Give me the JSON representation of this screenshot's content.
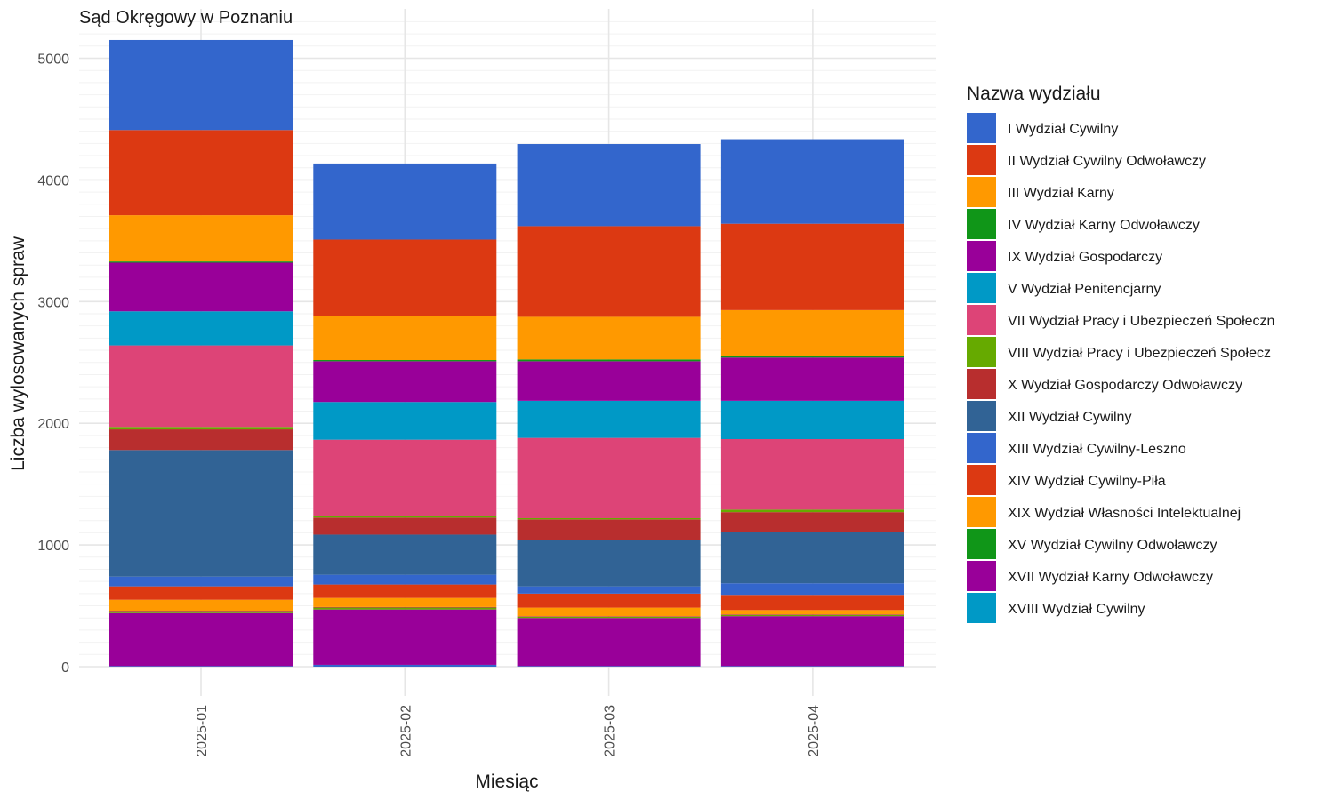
{
  "chart_data": {
    "type": "bar",
    "stacked": true,
    "title": "Sąd Okręgowy w Poznaniu",
    "xlabel": "Miesiąc",
    "ylabel": "Liczba wylosowanych spraw",
    "categories": [
      "2025-01",
      "2025-02",
      "2025-03",
      "2025-04"
    ],
    "ylim": [
      0,
      5300
    ],
    "yticks": [
      0,
      1000,
      2000,
      3000,
      4000,
      5000
    ],
    "grid": true,
    "legend": {
      "title": "Nazwa wydziału",
      "position": "right"
    },
    "series": [
      {
        "name": "I Wydział Cywilny",
        "color": "#3366CC",
        "values": [
          5,
          15,
          5,
          5
        ]
      },
      {
        "name": "II Wydział Cywilny Odwoławczy",
        "color": "#DC3912",
        "values": [
          0,
          0,
          0,
          0
        ]
      },
      {
        "name": "III Wydział Karny",
        "color": "#FF9900",
        "values": [
          0,
          0,
          0,
          0
        ]
      },
      {
        "name": "IV Wydział Karny Odwoławczy",
        "color": "#109618",
        "values": [
          0,
          0,
          0,
          0
        ]
      },
      {
        "name": "IX Wydział Gospodarczy",
        "color": "#990099",
        "values": [
          435,
          455,
          395,
          410
        ]
      },
      {
        "name": "V Wydział Penitencjarny",
        "color": "#0099C6",
        "values": [
          0,
          0,
          0,
          0
        ]
      },
      {
        "name": "VII Wydział Pracy i Ubezpieczeń Społeczn",
        "color": "#DD4477",
        "values": [
          0,
          0,
          0,
          0
        ]
      },
      {
        "name": "VIII Wydział Pracy i Ubezpieczeń Społecz",
        "color": "#66AA00",
        "values": [
          15,
          15,
          10,
          10
        ]
      },
      {
        "name": "X Wydział Gospodarczy Odwoławczy",
        "color": "#B82E2E",
        "values": [
          5,
          5,
          5,
          5
        ]
      },
      {
        "name": "XII Wydział Cywilny",
        "color": "#316395",
        "values": [
          0,
          0,
          0,
          0
        ]
      },
      {
        "name": "XIII Wydział Cywilny-Leszno",
        "color": "#3366CC",
        "values": [
          0,
          0,
          0,
          0
        ]
      },
      {
        "name": "XIV Wydział Cywilny-Piła",
        "color": "#DC3912",
        "values": [
          0,
          0,
          0,
          0
        ]
      },
      {
        "name": "XIX Wydział Własności Intelektualnej",
        "color": "#FF9900",
        "values": [
          90,
          75,
          70,
          35
        ]
      },
      {
        "name": "XV Wydział Cywilny Odwoławczy",
        "color": "#109618",
        "values": [
          0,
          0,
          0,
          0
        ]
      },
      {
        "name": "XVII Wydział Karny Odwoławczy",
        "color": "#990099",
        "values": [
          0,
          0,
          0,
          0
        ]
      },
      {
        "name": "XVIII Wydział Cywilny",
        "color": "#0099C6",
        "values": [
          0,
          0,
          0,
          0
        ]
      },
      {
        "name": "XIV Wydział Cywilny-Piła (upper)",
        "color": "#DC3912",
        "values": [
          110,
          110,
          115,
          125
        ]
      },
      {
        "name": "XIII Wydział Cywilny-Leszno (upper)",
        "color": "#3366CC",
        "values": [
          80,
          80,
          60,
          95
        ]
      },
      {
        "name": "XII Wydział Cywilny (upper)",
        "color": "#316395",
        "values": [
          1040,
          330,
          380,
          420
        ]
      },
      {
        "name": "X Wydział Gospodarczy Odwoławczy (upper)",
        "color": "#B82E2E",
        "values": [
          170,
          140,
          170,
          165
        ]
      },
      {
        "name": "VIII Wydział Pracy i Ubezpieczeń Społecz (upper)",
        "color": "#66AA00",
        "values": [
          20,
          10,
          10,
          20
        ]
      },
      {
        "name": "VII Wydział Pracy i Ubezpieczeń Społeczn (upper)",
        "color": "#DD4477",
        "values": [
          670,
          630,
          660,
          580
        ]
      },
      {
        "name": "V Wydział Penitencjarny (upper)",
        "color": "#0099C6",
        "values": [
          280,
          310,
          305,
          315
        ]
      },
      {
        "name": "IX Wydział Gospodarczy (upper)",
        "color": "#990099",
        "values": [
          400,
          335,
          325,
          355
        ]
      },
      {
        "name": "IV Wydział Karny Odwoławczy (upper)",
        "color": "#109618",
        "values": [
          10,
          10,
          15,
          10
        ]
      },
      {
        "name": "III Wydział Karny (upper)",
        "color": "#FF9900",
        "values": [
          380,
          360,
          350,
          380
        ]
      },
      {
        "name": "II Wydział Cywilny Odwoławczy (upper)",
        "color": "#DC3912",
        "values": [
          700,
          630,
          745,
          710
        ]
      },
      {
        "name": "I Wydział Cywilny (upper)",
        "color": "#3366CC",
        "values": [
          740,
          625,
          675,
          695
        ]
      }
    ],
    "legend_entries": [
      {
        "label": "I Wydział Cywilny",
        "color": "#3366CC"
      },
      {
        "label": "II Wydział Cywilny Odwoławczy",
        "color": "#DC3912"
      },
      {
        "label": "III Wydział Karny",
        "color": "#FF9900"
      },
      {
        "label": "IV Wydział Karny Odwoławczy",
        "color": "#109618"
      },
      {
        "label": "IX Wydział Gospodarczy",
        "color": "#990099"
      },
      {
        "label": "V Wydział Penitencjarny",
        "color": "#0099C6"
      },
      {
        "label": "VII Wydział Pracy i Ubezpieczeń Społeczn",
        "color": "#DD4477"
      },
      {
        "label": "VIII Wydział Pracy i Ubezpieczeń Społecz",
        "color": "#66AA00"
      },
      {
        "label": "X Wydział Gospodarczy Odwoławczy",
        "color": "#B82E2E"
      },
      {
        "label": "XII Wydział Cywilny",
        "color": "#316395"
      },
      {
        "label": "XIII Wydział Cywilny-Leszno",
        "color": "#3366CC"
      },
      {
        "label": "XIV Wydział Cywilny-Piła",
        "color": "#DC3912"
      },
      {
        "label": "XIX Wydział Własności Intelektualnej",
        "color": "#FF9900"
      },
      {
        "label": "XV Wydział Cywilny Odwoławczy",
        "color": "#109618"
      },
      {
        "label": "XVII Wydział Karny Odwoławczy",
        "color": "#990099"
      },
      {
        "label": "XVIII Wydział Cywilny",
        "color": "#0099C6"
      }
    ]
  }
}
